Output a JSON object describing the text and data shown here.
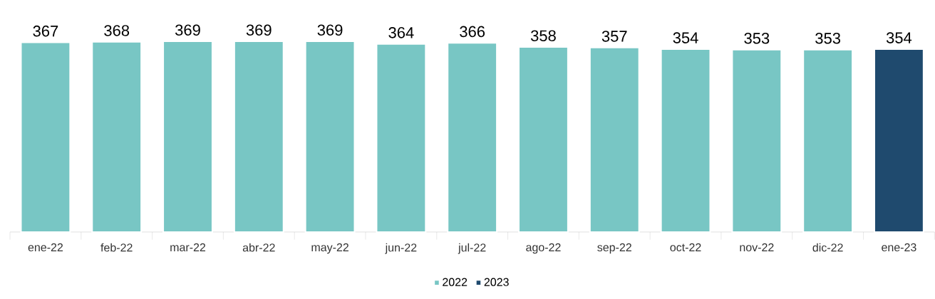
{
  "chart_data": {
    "type": "bar",
    "categories": [
      "ene-22",
      "feb-22",
      "mar-22",
      "abr-22",
      "may-22",
      "jun-22",
      "jul-22",
      "ago-22",
      "sep-22",
      "oct-22",
      "nov-22",
      "dic-22",
      "ene-23"
    ],
    "series": [
      {
        "name": "2022",
        "color": "#78c6c4",
        "values": [
          367,
          368,
          369,
          369,
          369,
          364,
          366,
          358,
          357,
          354,
          353,
          353,
          null
        ]
      },
      {
        "name": "2023",
        "color": "#1f4a6e",
        "values": [
          null,
          null,
          null,
          null,
          null,
          null,
          null,
          null,
          null,
          null,
          null,
          null,
          354
        ]
      }
    ],
    "data_labels": true,
    "legend": "bottom",
    "grid": false,
    "tick_labels": "x"
  }
}
